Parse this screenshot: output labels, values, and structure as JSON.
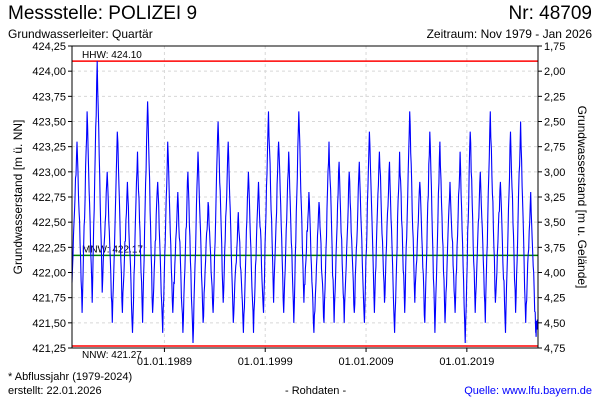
{
  "header": {
    "title": "Messstelle: POLIZEI 9",
    "number": "Nr: 48709",
    "aquifer": "Grundwasserleiter: Quartär",
    "period": "Zeitraum: Nov 1979 - Jan 2026"
  },
  "footer": {
    "note": "* Abflussjahr (1979-2024)",
    "created": "erstellt:  22.01.2026",
    "raw": "- Rohdaten -",
    "source": "Quelle: www.lfu.bayern.de"
  },
  "colors": {
    "series": "#0000ff",
    "extreme_lines": "#ff0000",
    "mean_line": "#008000",
    "grid": "#d8d8d8"
  },
  "chart_data": {
    "type": "line",
    "xlabel": "",
    "ylabel": "Grundwasserstand [m ü. NN]",
    "ylabel_right": "Grundwasserstand [m u. Gelände]",
    "x_range": [
      "1979-11-01",
      "2026-01-22"
    ],
    "ylim": [
      421.25,
      424.25
    ],
    "ylim_right": [
      4.75,
      1.75
    ],
    "y_ticks": [
      "424,25",
      "424,00",
      "423,75",
      "423,50",
      "423,25",
      "423,00",
      "422,75",
      "422,50",
      "422,25",
      "422,00",
      "421,75",
      "421,50",
      "421,25"
    ],
    "y_ticks_right": [
      "1,75",
      "2,00",
      "2,25",
      "2,50",
      "2,75",
      "3,00",
      "3,25",
      "3,50",
      "3,75",
      "4,00",
      "4,25",
      "4,50",
      "4,75"
    ],
    "x_ticks": [
      {
        "date": "1989-01-01",
        "label": "01.01.1989"
      },
      {
        "date": "1999-01-01",
        "label": "01.01.1999"
      },
      {
        "date": "2009-01-01",
        "label": "01.01.2009"
      },
      {
        "date": "2019-01-01",
        "label": "01.01.2019"
      }
    ],
    "grid": true,
    "reference_lines": [
      {
        "label": "HHW: 424.10",
        "value": 424.1,
        "role": "max"
      },
      {
        "label": "MNW: 422.17",
        "value": 422.17,
        "role": "mean"
      },
      {
        "label": "NNW: 421.27",
        "value": 421.27,
        "role": "min"
      }
    ],
    "series": [
      {
        "points": [
          [
            "1979-11",
            421.9
          ],
          [
            "1980-05",
            423.3
          ],
          [
            "1980-11",
            421.6
          ],
          [
            "1981-05",
            423.6
          ],
          [
            "1981-11",
            421.7
          ],
          [
            "1982-05",
            424.1
          ],
          [
            "1982-11",
            421.8
          ],
          [
            "1983-05",
            423.0
          ],
          [
            "1983-11",
            421.5
          ],
          [
            "1984-05",
            423.4
          ],
          [
            "1984-11",
            421.6
          ],
          [
            "1985-05",
            422.9
          ],
          [
            "1985-11",
            421.4
          ],
          [
            "1986-05",
            423.2
          ],
          [
            "1986-11",
            421.5
          ],
          [
            "1987-05",
            423.7
          ],
          [
            "1987-11",
            421.6
          ],
          [
            "1988-05",
            422.9
          ],
          [
            "1988-11",
            421.4
          ],
          [
            "1989-05",
            423.3
          ],
          [
            "1989-11",
            421.6
          ],
          [
            "1990-05",
            422.8
          ],
          [
            "1990-11",
            421.4
          ],
          [
            "1991-05",
            423.0
          ],
          [
            "1991-11",
            421.3
          ],
          [
            "1992-05",
            423.2
          ],
          [
            "1992-11",
            421.5
          ],
          [
            "1993-05",
            422.7
          ],
          [
            "1993-11",
            421.6
          ],
          [
            "1994-05",
            423.5
          ],
          [
            "1994-11",
            421.7
          ],
          [
            "1995-05",
            423.3
          ],
          [
            "1995-11",
            421.5
          ],
          [
            "1996-05",
            422.6
          ],
          [
            "1996-11",
            421.4
          ],
          [
            "1997-05",
            423.0
          ],
          [
            "1997-11",
            421.4
          ],
          [
            "1998-05",
            422.9
          ],
          [
            "1998-11",
            421.6
          ],
          [
            "1999-05",
            423.6
          ],
          [
            "1999-11",
            421.7
          ],
          [
            "2000-05",
            423.3
          ],
          [
            "2000-11",
            421.6
          ],
          [
            "2001-05",
            423.2
          ],
          [
            "2001-11",
            421.5
          ],
          [
            "2002-05",
            423.6
          ],
          [
            "2002-11",
            421.7
          ],
          [
            "2003-05",
            422.8
          ],
          [
            "2003-11",
            421.4
          ],
          [
            "2004-05",
            422.7
          ],
          [
            "2004-11",
            421.5
          ],
          [
            "2005-05",
            423.3
          ],
          [
            "2005-11",
            421.5
          ],
          [
            "2006-05",
            423.1
          ],
          [
            "2006-11",
            421.5
          ],
          [
            "2007-05",
            423.0
          ],
          [
            "2007-11",
            421.6
          ],
          [
            "2008-05",
            423.1
          ],
          [
            "2008-11",
            421.5
          ],
          [
            "2009-05",
            423.4
          ],
          [
            "2009-11",
            421.6
          ],
          [
            "2010-05",
            423.2
          ],
          [
            "2010-11",
            421.7
          ],
          [
            "2011-05",
            423.1
          ],
          [
            "2011-11",
            421.4
          ],
          [
            "2012-05",
            423.2
          ],
          [
            "2012-11",
            421.6
          ],
          [
            "2013-05",
            423.6
          ],
          [
            "2013-11",
            421.7
          ],
          [
            "2014-05",
            422.9
          ],
          [
            "2014-11",
            421.5
          ],
          [
            "2015-05",
            423.4
          ],
          [
            "2015-11",
            421.4
          ],
          [
            "2016-05",
            423.3
          ],
          [
            "2016-11",
            421.5
          ],
          [
            "2017-05",
            422.9
          ],
          [
            "2017-11",
            421.6
          ],
          [
            "2018-05",
            423.2
          ],
          [
            "2018-11",
            421.3
          ],
          [
            "2019-05",
            423.4
          ],
          [
            "2019-11",
            421.6
          ],
          [
            "2020-05",
            423.0
          ],
          [
            "2020-11",
            421.5
          ],
          [
            "2021-05",
            423.6
          ],
          [
            "2021-11",
            421.7
          ],
          [
            "2022-05",
            422.9
          ],
          [
            "2022-11",
            421.4
          ],
          [
            "2023-05",
            423.4
          ],
          [
            "2023-11",
            421.6
          ],
          [
            "2024-05",
            423.5
          ],
          [
            "2024-11",
            421.5
          ],
          [
            "2025-05",
            422.8
          ],
          [
            "2025-11",
            421.4
          ],
          [
            "2026-01",
            421.5
          ]
        ]
      }
    ]
  }
}
